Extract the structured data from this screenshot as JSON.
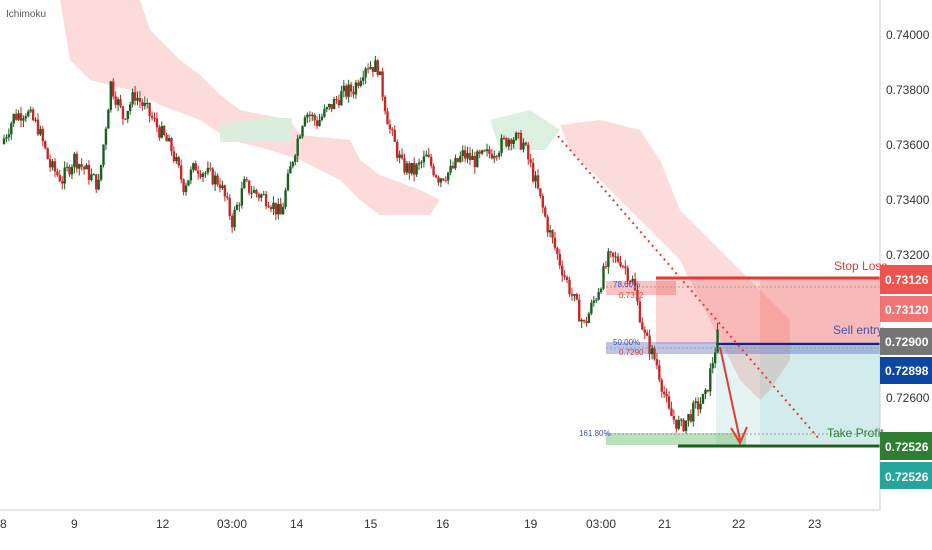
{
  "indicator_label": "Ichimoku",
  "chart_data": {
    "type": "candlestick",
    "ylim": [
      0.7224,
      0.7408
    ],
    "y_ticks": [
      "0.74000",
      "0.73800",
      "0.73600",
      "0.73400",
      "0.73200",
      "0.72600"
    ],
    "x_ticks": [
      "8",
      "9",
      "12",
      "03:00",
      "14",
      "15",
      "16",
      "19",
      "03:00",
      "21",
      "22",
      "23"
    ],
    "close_path": [
      0.736,
      0.737,
      0.7372,
      0.7366,
      0.7352,
      0.7347,
      0.7355,
      0.735,
      0.7345,
      0.7382,
      0.737,
      0.7378,
      0.7372,
      0.7365,
      0.7358,
      0.7345,
      0.7352,
      0.7349,
      0.7346,
      0.7332,
      0.7345,
      0.7342,
      0.734,
      0.7334,
      0.7355,
      0.7372,
      0.7368,
      0.7373,
      0.7378,
      0.738,
      0.7389,
      0.7388,
      0.7365,
      0.7352,
      0.735,
      0.7355,
      0.7348,
      0.735,
      0.7356,
      0.7354,
      0.7356,
      0.7359,
      0.7363,
      0.736,
      0.7346,
      0.733,
      0.7317,
      0.7305,
      0.7294,
      0.7305,
      0.7318,
      0.7318,
      0.731,
      0.729,
      0.728,
      0.7262,
      0.7257,
      0.7263,
      0.7268,
      0.729
    ],
    "levels": {
      "stop_loss": {
        "label": "Stop Loss",
        "value": "0.73126",
        "value2": "0.73120",
        "color": "#e53935"
      },
      "sell_entry": {
        "label": "Sell entry",
        "value": "0.72900",
        "value2": "0.72898",
        "color": "#3f51b5"
      },
      "take_profit": {
        "label": "Take Profit",
        "value": "0.72526",
        "value2": "0.72526",
        "color": "#2e7d32"
      }
    },
    "fib_labels": {
      "top": "78.60%",
      "top_value": "0.7312",
      "mid": "50.00%",
      "mid_value": "0.7290",
      "bottom": "161.80%"
    },
    "colors": {
      "up": "#26a69a",
      "down": "#ef5350",
      "bull_candle": "#1b5e20",
      "bear_candle": "#c62828",
      "cloud_red": "#fcd7d7",
      "cloud_green": "#d8eedd",
      "entry_tag": "#757575",
      "entry_tag2": "#0d47a1",
      "tp_tag2": "#26a69a",
      "sl_tag": "#ef5350",
      "sl_tag_dark": "#e53935"
    }
  }
}
